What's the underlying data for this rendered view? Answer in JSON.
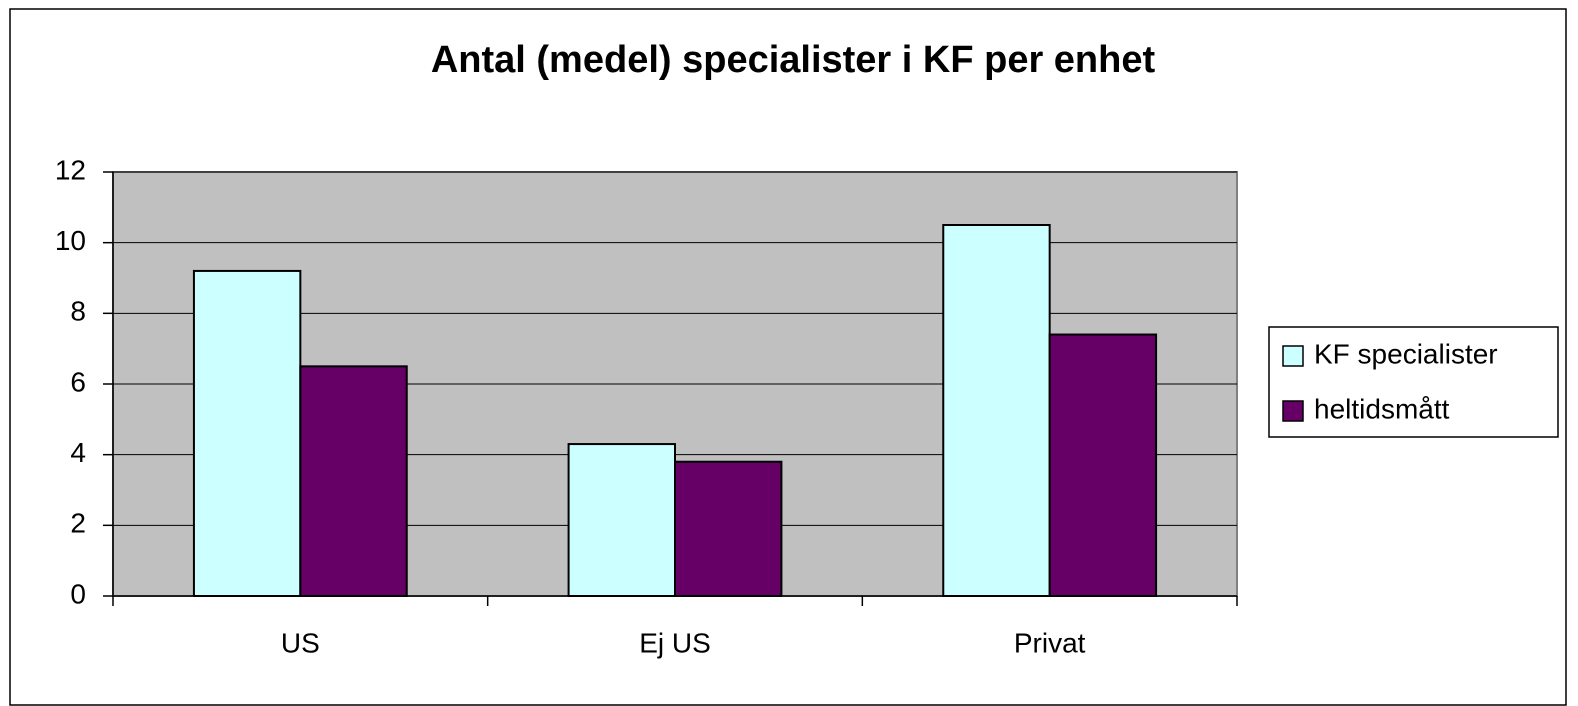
{
  "chart_data": {
    "type": "bar",
    "title": "Antal (medel) specialister i KF per enhet",
    "categories": [
      "US",
      "Ej US",
      "Privat"
    ],
    "series": [
      {
        "name": "KF specialister",
        "color": "#ccffff",
        "values": [
          9.2,
          4.3,
          10.5
        ]
      },
      {
        "name": "heltidsmått",
        "color": "#660066",
        "values": [
          6.5,
          3.8,
          7.4
        ]
      }
    ],
    "ylim": [
      0,
      12
    ],
    "yticks": [
      0,
      2,
      4,
      6,
      8,
      10,
      12
    ],
    "grid": true,
    "legend": "right"
  }
}
